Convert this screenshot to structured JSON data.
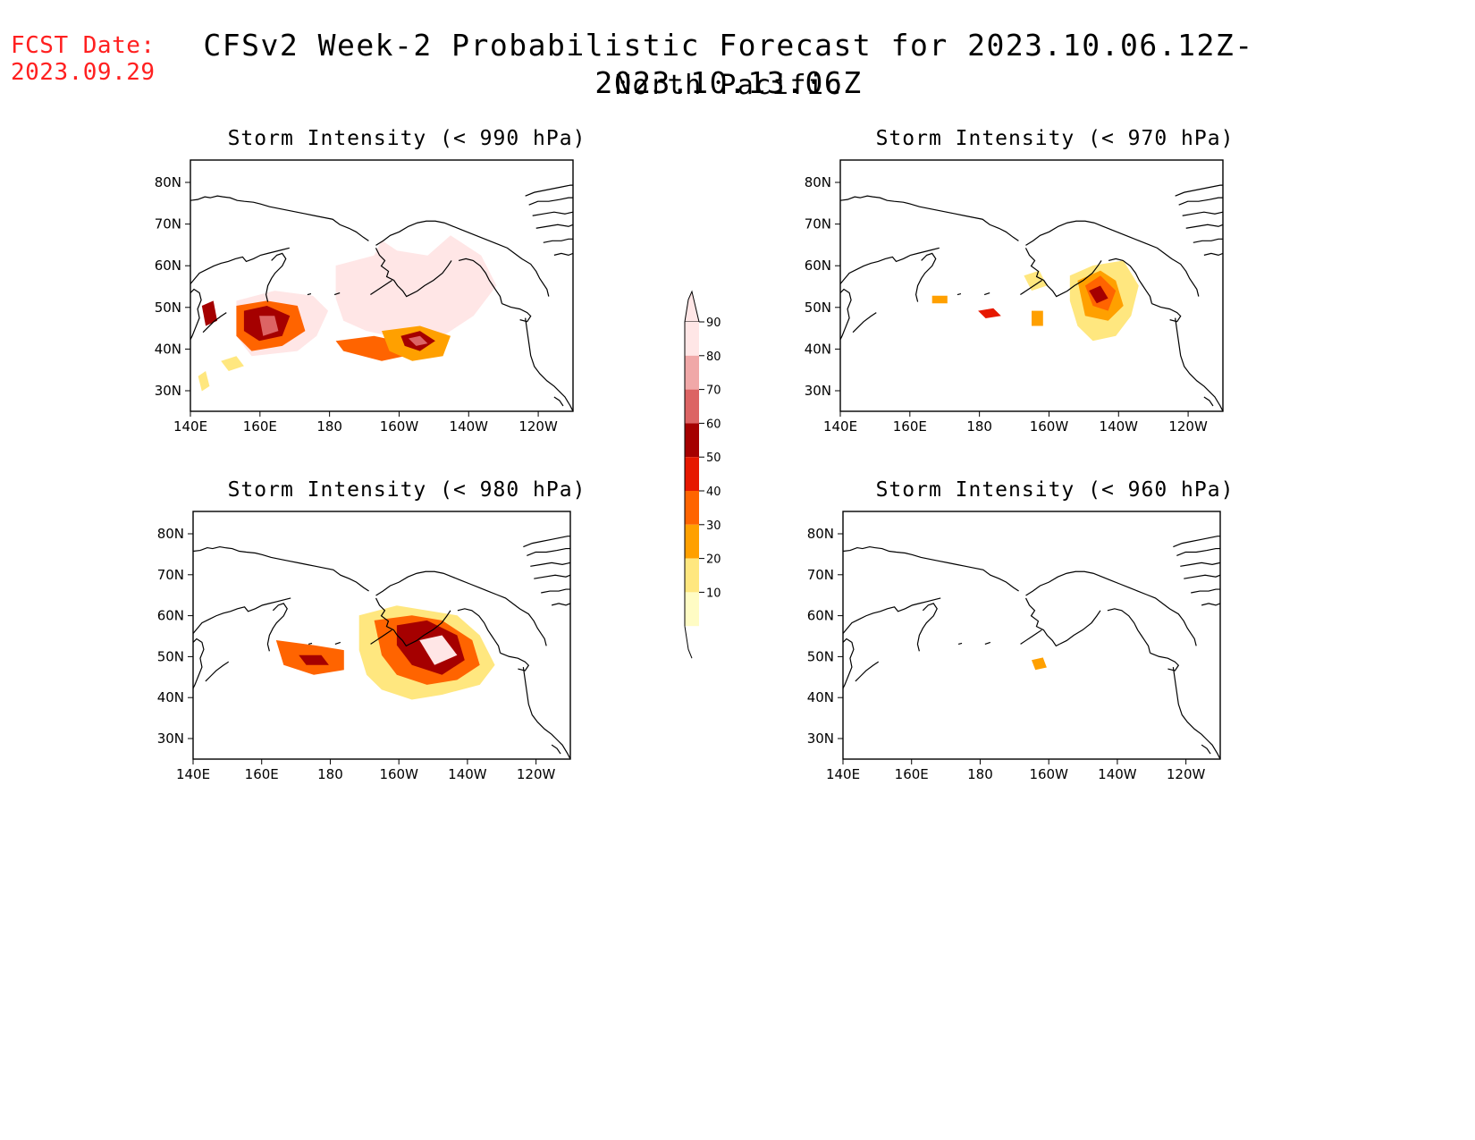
{
  "header": {
    "fcst_label": "FCST Date:",
    "fcst_date": "2023.09.29",
    "title": "CFSv2 Week-2 Probabilistic Forecast for 2023.10.06.12Z-2023.10.13.06Z",
    "subtitle": "North Pacific"
  },
  "colors": {
    "p10": "#fffcc4",
    "p20": "#ffe77f",
    "p30": "#ffa000",
    "p40": "#ff6400",
    "p50": "#e61800",
    "p60": "#a50000",
    "p70": "#dc6464",
    "p80": "#f0a8a8",
    "p90": "#ffe6e6"
  },
  "colorbar": {
    "labels": [
      "90",
      "80",
      "70",
      "60",
      "50",
      "40",
      "30",
      "20",
      "10"
    ]
  },
  "axes": {
    "x_ticks": [
      "140E",
      "160E",
      "180",
      "160W",
      "140W",
      "120W"
    ],
    "y_ticks": [
      "80N",
      "70N",
      "60N",
      "50N",
      "40N",
      "30N"
    ]
  },
  "panels": [
    {
      "title": "Storm Intensity (< 990 hPa)"
    },
    {
      "title": "Storm Intensity (< 970 hPa)"
    },
    {
      "title": "Storm Intensity (< 980 hPa)"
    },
    {
      "title": "Storm Intensity (< 960 hPa)"
    }
  ]
}
